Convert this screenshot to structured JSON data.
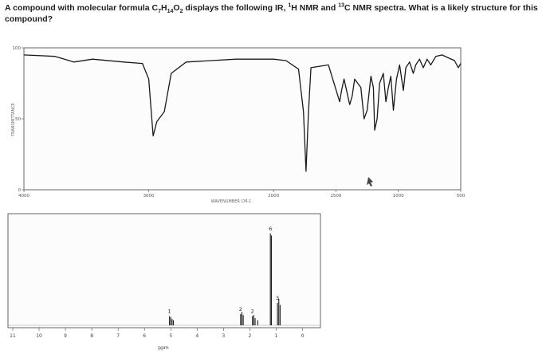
{
  "question": {
    "part1": "A compound with molecular formula C",
    "c_sub": "7",
    "h": "H",
    "h_sub": "14",
    "o": "O",
    "o_sub": "2",
    "part2": " displays the following IR, ",
    "h_mass": "1",
    "part3": "H NMR and ",
    "c_mass": "13",
    "part4": "C NMR spectra. What is a likely structure for this compound?"
  },
  "chart_data": [
    {
      "type": "line",
      "name": "ir-spectrum",
      "title": "",
      "xlabel": "WAVENUMBER CM-1",
      "ylabel": "TRANSMITTANCE",
      "xlim": [
        4000,
        500
      ],
      "ylim": [
        0,
        100
      ],
      "x_ticks": [
        "4000",
        "3000",
        "2000",
        "1500",
        "1000",
        "500"
      ],
      "y_ticks": [
        "100",
        "50",
        "0"
      ],
      "points": [
        [
          4000,
          95
        ],
        [
          3750,
          94
        ],
        [
          3600,
          90
        ],
        [
          3450,
          92
        ],
        [
          3200,
          90
        ],
        [
          3050,
          89
        ],
        [
          3000,
          78
        ],
        [
          2965,
          38
        ],
        [
          2935,
          48
        ],
        [
          2875,
          55
        ],
        [
          2820,
          82
        ],
        [
          2700,
          90
        ],
        [
          2500,
          91
        ],
        [
          2300,
          92
        ],
        [
          2100,
          92
        ],
        [
          2000,
          92
        ],
        [
          1900,
          91
        ],
        [
          1800,
          85
        ],
        [
          1760,
          55
        ],
        [
          1740,
          13
        ],
        [
          1720,
          55
        ],
        [
          1700,
          86
        ],
        [
          1560,
          88
        ],
        [
          1470,
          62
        ],
        [
          1455,
          70
        ],
        [
          1435,
          78
        ],
        [
          1390,
          60
        ],
        [
          1370,
          66
        ],
        [
          1350,
          78
        ],
        [
          1300,
          72
        ],
        [
          1275,
          50
        ],
        [
          1250,
          56
        ],
        [
          1220,
          80
        ],
        [
          1200,
          72
        ],
        [
          1190,
          42
        ],
        [
          1170,
          50
        ],
        [
          1150,
          75
        ],
        [
          1120,
          82
        ],
        [
          1100,
          62
        ],
        [
          1080,
          72
        ],
        [
          1060,
          80
        ],
        [
          1040,
          56
        ],
        [
          1015,
          78
        ],
        [
          990,
          88
        ],
        [
          960,
          70
        ],
        [
          940,
          86
        ],
        [
          910,
          90
        ],
        [
          880,
          82
        ],
        [
          860,
          88
        ],
        [
          830,
          92
        ],
        [
          800,
          86
        ],
        [
          770,
          92
        ],
        [
          740,
          88
        ],
        [
          700,
          94
        ],
        [
          650,
          95
        ],
        [
          600,
          93
        ],
        [
          550,
          91
        ],
        [
          520,
          86
        ],
        [
          500,
          89
        ]
      ]
    },
    {
      "type": "line",
      "name": "h-nmr-spectrum",
      "title": "",
      "xlabel": "ppm",
      "ylabel": "",
      "xlim": [
        11,
        -0.5
      ],
      "ylim": [
        0,
        100
      ],
      "x_ticks": [
        "11",
        "10",
        "9",
        "8",
        "7",
        "6",
        "5",
        "4",
        "3",
        "2",
        "1",
        "0"
      ],
      "peaks": [
        {
          "shift": 5.05,
          "height": 9,
          "integration": "1"
        },
        {
          "shift": 5.0,
          "height": 8,
          "integration": ""
        },
        {
          "shift": 4.95,
          "height": 6,
          "integration": ""
        },
        {
          "shift": 4.9,
          "height": 5,
          "integration": ""
        },
        {
          "shift": 2.35,
          "height": 11,
          "integration": "2"
        },
        {
          "shift": 2.3,
          "height": 13,
          "integration": ""
        },
        {
          "shift": 2.25,
          "height": 10,
          "integration": ""
        },
        {
          "shift": 1.9,
          "height": 9,
          "integration": "2"
        },
        {
          "shift": 1.85,
          "height": 10,
          "integration": ""
        },
        {
          "shift": 1.8,
          "height": 7,
          "integration": ""
        },
        {
          "shift": 1.7,
          "height": 5,
          "integration": ""
        },
        {
          "shift": 1.22,
          "height": 90,
          "integration": "6"
        },
        {
          "shift": 1.18,
          "height": 88,
          "integration": ""
        },
        {
          "shift": 0.95,
          "height": 22,
          "integration": "3"
        },
        {
          "shift": 0.9,
          "height": 26,
          "integration": ""
        },
        {
          "shift": 0.85,
          "height": 20,
          "integration": ""
        }
      ]
    }
  ]
}
